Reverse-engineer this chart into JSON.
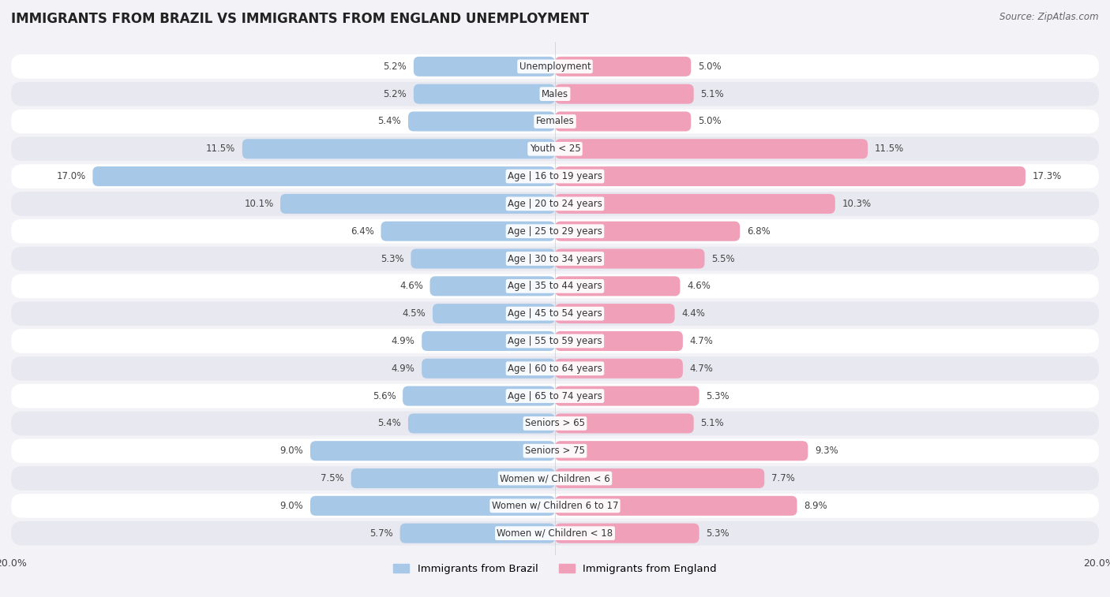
{
  "title": "IMMIGRANTS FROM BRAZIL VS IMMIGRANTS FROM ENGLAND UNEMPLOYMENT",
  "source": "Source: ZipAtlas.com",
  "categories": [
    "Unemployment",
    "Males",
    "Females",
    "Youth < 25",
    "Age | 16 to 19 years",
    "Age | 20 to 24 years",
    "Age | 25 to 29 years",
    "Age | 30 to 34 years",
    "Age | 35 to 44 years",
    "Age | 45 to 54 years",
    "Age | 55 to 59 years",
    "Age | 60 to 64 years",
    "Age | 65 to 74 years",
    "Seniors > 65",
    "Seniors > 75",
    "Women w/ Children < 6",
    "Women w/ Children 6 to 17",
    "Women w/ Children < 18"
  ],
  "brazil_values": [
    5.2,
    5.2,
    5.4,
    11.5,
    17.0,
    10.1,
    6.4,
    5.3,
    4.6,
    4.5,
    4.9,
    4.9,
    5.6,
    5.4,
    9.0,
    7.5,
    9.0,
    5.7
  ],
  "england_values": [
    5.0,
    5.1,
    5.0,
    11.5,
    17.3,
    10.3,
    6.8,
    5.5,
    4.6,
    4.4,
    4.7,
    4.7,
    5.3,
    5.1,
    9.3,
    7.7,
    8.9,
    5.3
  ],
  "brazil_color": "#a8c8e8",
  "england_color": "#f0a0b8",
  "max_value": 20.0,
  "bg_color": "#f2f2f7",
  "row_light": "#ffffff",
  "row_dark": "#e8e8f0",
  "label_fontsize": 8.5,
  "title_fontsize": 12,
  "legend_fontsize": 9.5,
  "source_fontsize": 8.5
}
